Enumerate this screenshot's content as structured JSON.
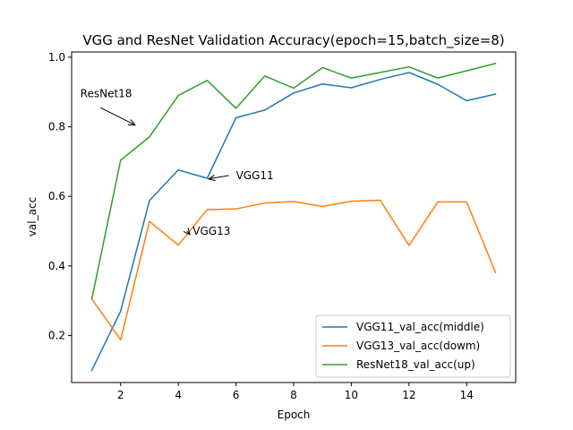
{
  "chart_data": {
    "type": "line",
    "title": "VGG and ResNet Validation Accuracy(epoch=15,batch_size=8)",
    "xlabel": "Epoch",
    "ylabel": "val_acc",
    "xlim": [
      0.3,
      15.7
    ],
    "ylim": [
      0.065,
      1.015
    ],
    "xticks": [
      2,
      4,
      6,
      8,
      10,
      12,
      14
    ],
    "yticks": [
      0.2,
      0.4,
      0.6,
      0.8,
      1.0
    ],
    "ytick_labels": [
      "0.2",
      "0.4",
      "0.6",
      "0.8",
      "1.0"
    ],
    "grid": false,
    "legend_position": "lower-right",
    "x": [
      1,
      2,
      3,
      4,
      5,
      6,
      7,
      8,
      9,
      10,
      11,
      12,
      13,
      14,
      15
    ],
    "series": [
      {
        "name": "VGG11_val_acc(middle)",
        "color": "#1f77b4",
        "values": [
          0.1,
          0.27,
          0.588,
          0.676,
          0.652,
          0.826,
          0.848,
          0.897,
          0.923,
          0.912,
          0.936,
          0.956,
          0.922,
          0.875,
          0.894
        ]
      },
      {
        "name": "VGG13_val_acc(dowm)",
        "color": "#ff7f0e",
        "values": [
          0.305,
          0.188,
          0.528,
          0.46,
          0.562,
          0.564,
          0.581,
          0.585,
          0.571,
          0.586,
          0.589,
          0.459,
          0.584,
          0.584,
          0.381
        ]
      },
      {
        "name": "ResNet18_val_acc(up)",
        "color": "#2ca02c",
        "values": [
          0.305,
          0.704,
          0.771,
          0.89,
          0.933,
          0.853,
          0.946,
          0.911,
          0.97,
          0.94,
          0.956,
          0.972,
          0.94,
          0.961,
          0.982
        ]
      }
    ],
    "annotations": [
      {
        "text": "ResNet18",
        "x_text": 0.6,
        "y_text": 0.895,
        "x_arrow": 2.5,
        "y_arrow": 0.805
      },
      {
        "text": "VGG11",
        "x_text": 6.0,
        "y_text": 0.66,
        "x_arrow": 5.05,
        "y_arrow": 0.65
      },
      {
        "text": "VGG13",
        "x_text": 4.5,
        "y_text": 0.5,
        "x_arrow": 4.4,
        "y_arrow": 0.49
      }
    ]
  }
}
